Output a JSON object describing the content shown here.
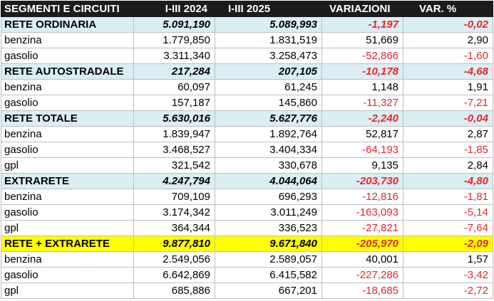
{
  "table": {
    "headers": [
      "SEGMENTI E CIRCUITI",
      "I-III 2024",
      "I-III 2025",
      "VARIAZIONI",
      "VAR. %"
    ],
    "rows": [
      {
        "type": "group",
        "cells": [
          "RETE ORDINARIA",
          "5.091,190",
          "5.089,993",
          "-1,197",
          "-0,02"
        ]
      },
      {
        "type": "item",
        "cells": [
          "benzina",
          "1.779,850",
          "1.831,519",
          "51,669",
          "2,90"
        ]
      },
      {
        "type": "item",
        "cells": [
          "gasolio",
          "3.311,340",
          "3.258,473",
          "-52,866",
          "-1,60"
        ]
      },
      {
        "type": "group",
        "cells": [
          "RETE AUTOSTRADALE",
          "217,284",
          "207,105",
          "-10,178",
          "-4,68"
        ]
      },
      {
        "type": "item",
        "cells": [
          "benzina",
          "60,097",
          "61,245",
          "1,148",
          "1,91"
        ]
      },
      {
        "type": "item",
        "cells": [
          "gasolio",
          "157,187",
          "145,860",
          "-11,327",
          "-7,21"
        ]
      },
      {
        "type": "group",
        "cells": [
          "RETE TOTALE",
          "5.630,016",
          "5.627,776",
          "-2,240",
          "-0,04"
        ]
      },
      {
        "type": "item",
        "cells": [
          "benzina",
          "1.839,947",
          "1.892,764",
          "52,817",
          "2,87"
        ]
      },
      {
        "type": "item",
        "cells": [
          "gasolio",
          "3.468,527",
          "3.404,334",
          "-64,193",
          "-1,85"
        ]
      },
      {
        "type": "item",
        "cells": [
          "gpl",
          "321,542",
          "330,678",
          "9,135",
          "2,84"
        ]
      },
      {
        "type": "group",
        "cells": [
          "EXTRARETE",
          "4.247,794",
          "4.044,064",
          "-203,730",
          "-4,80"
        ]
      },
      {
        "type": "item",
        "cells": [
          "benzina",
          "709,109",
          "696,293",
          "-12,816",
          "-1,81"
        ]
      },
      {
        "type": "item",
        "cells": [
          "gasolio",
          "3.174,342",
          "3.011,249",
          "-163,093",
          "-5,14"
        ]
      },
      {
        "type": "item",
        "cells": [
          "gpl",
          "364,344",
          "336,523",
          "-27,821",
          "-7,64"
        ]
      },
      {
        "type": "total",
        "cells": [
          "RETE + EXTRARETE",
          "9.877,810",
          "9.671,840",
          "-205,970",
          "-2,09"
        ]
      },
      {
        "type": "item",
        "cells": [
          "benzina",
          "2.549,056",
          "2.589,057",
          "40,001",
          "1,57"
        ]
      },
      {
        "type": "item",
        "cells": [
          "gasolio",
          "6.642,869",
          "6.415,582",
          "-227,286",
          "-3,42"
        ]
      },
      {
        "type": "item",
        "cells": [
          "gpl",
          "685,886",
          "667,201",
          "-18,685",
          "-2,72"
        ]
      }
    ]
  },
  "colors": {
    "header_bg": "#1c1c1c",
    "group_bg": "#daeef3",
    "total_bg": "#ffff00",
    "negative": "#e8262b"
  }
}
